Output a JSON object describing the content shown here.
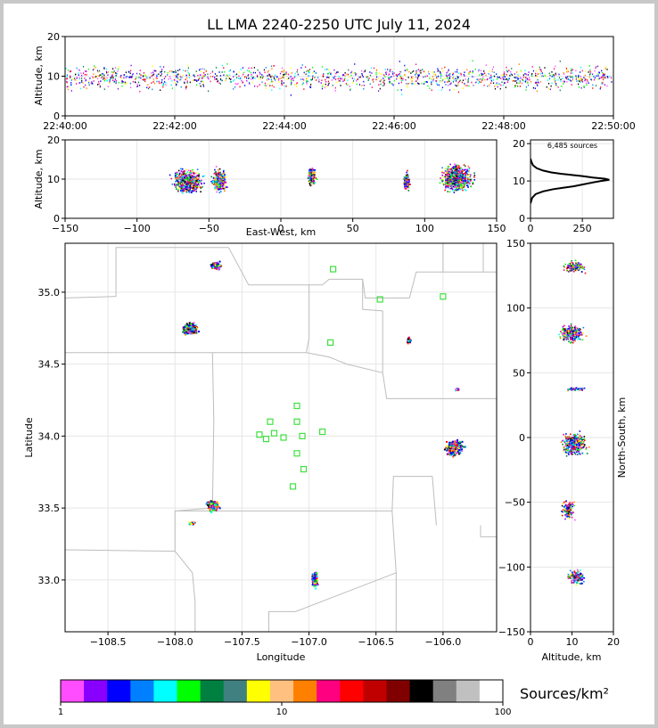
{
  "chart_data": [
    {
      "type": "scatter",
      "panel": "time-altitude",
      "title": "LL LMA 2240-2250 UTC July 11, 2024",
      "xlabel": "",
      "ylabel": "Altitude, km",
      "x_ticks": [
        "22:40:00",
        "22:42:00",
        "22:44:00",
        "22:46:00",
        "22:48:00",
        "22:50:00"
      ],
      "y_ticks": [
        0,
        10,
        20
      ],
      "xlim_minutes": [
        0,
        10
      ],
      "ylim": [
        0,
        20
      ],
      "grid": true
    },
    {
      "type": "scatter",
      "panel": "east-west-altitude",
      "xlabel": "East-West, km",
      "ylabel": "Altitude, km",
      "x_ticks": [
        -150,
        -100,
        -50,
        0,
        50,
        100,
        150
      ],
      "y_ticks": [
        0,
        10,
        20
      ],
      "xlim": [
        -150,
        150
      ],
      "ylim": [
        0,
        20
      ],
      "clusters": [
        {
          "x": -65,
          "alt": 9.5,
          "wx": 12,
          "wz": 3.5,
          "n": 650
        },
        {
          "x": -43,
          "alt": 9.8,
          "wx": 6,
          "wz": 3.5,
          "n": 350
        },
        {
          "x": 21,
          "alt": 11,
          "wx": 3.5,
          "wz": 2.5,
          "n": 180
        },
        {
          "x": 87,
          "alt": 9.5,
          "wx": 2.5,
          "wz": 3,
          "n": 130
        },
        {
          "x": 122,
          "alt": 10.5,
          "wx": 13,
          "wz": 4,
          "n": 750
        }
      ],
      "grid": true
    },
    {
      "type": "line",
      "panel": "altitude-histogram",
      "annotation": "6,485 sources",
      "x_ticks": [
        0,
        250
      ],
      "y_ticks": [
        0,
        10,
        20
      ],
      "xlim": [
        0,
        400
      ],
      "ylim": [
        0,
        21
      ],
      "points": [
        [
          0,
          4
        ],
        [
          8,
          5.5
        ],
        [
          25,
          6.5
        ],
        [
          60,
          7.2
        ],
        [
          110,
          7.8
        ],
        [
          160,
          8.2
        ],
        [
          210,
          8.6
        ],
        [
          255,
          9.1
        ],
        [
          300,
          9.6
        ],
        [
          340,
          10
        ],
        [
          380,
          10.3
        ],
        [
          360,
          10.6
        ],
        [
          300,
          10.9
        ],
        [
          250,
          11.3
        ],
        [
          200,
          11.6
        ],
        [
          150,
          11.9
        ],
        [
          100,
          12.3
        ],
        [
          60,
          12.8
        ],
        [
          30,
          13.4
        ],
        [
          12,
          14.2
        ],
        [
          4,
          15.2
        ],
        [
          0,
          16
        ]
      ],
      "grid": true
    },
    {
      "type": "scatter",
      "panel": "plan-view",
      "xlabel": "Longitude",
      "ylabel": "Latitude",
      "x_ticks": [
        -108.5,
        -108.0,
        -107.5,
        -107.0,
        -106.5,
        -106.0
      ],
      "y_ticks": [
        33.0,
        33.5,
        34.0,
        34.5,
        35.0
      ],
      "xlim": [
        -108.82,
        -105.6
      ],
      "ylim": [
        32.64,
        35.34
      ],
      "stations": [
        [
          -106.82,
          35.16
        ],
        [
          -106.47,
          34.95
        ],
        [
          -106.0,
          34.97
        ],
        [
          -106.84,
          34.65
        ],
        [
          -107.09,
          34.21
        ],
        [
          -107.29,
          34.1
        ],
        [
          -107.09,
          34.1
        ],
        [
          -107.26,
          34.02
        ],
        [
          -107.37,
          34.01
        ],
        [
          -107.32,
          33.98
        ],
        [
          -107.19,
          33.99
        ],
        [
          -107.05,
          34.0
        ],
        [
          -106.9,
          34.03
        ],
        [
          -107.09,
          33.88
        ],
        [
          -107.04,
          33.77
        ],
        [
          -107.12,
          33.65
        ]
      ],
      "clusters": [
        {
          "lon": -107.89,
          "lat": 34.75,
          "wx": 0.07,
          "wy": 0.045,
          "n": 320
        },
        {
          "lon": -107.7,
          "lat": 35.19,
          "wx": 0.05,
          "wy": 0.03,
          "n": 150
        },
        {
          "lon": -106.26,
          "lat": 34.67,
          "wx": 0.015,
          "wy": 0.025,
          "n": 60
        },
        {
          "lon": -105.9,
          "lat": 34.33,
          "wx": 0.02,
          "wy": 0.01,
          "n": 25
        },
        {
          "lon": -105.92,
          "lat": 33.92,
          "wx": 0.08,
          "wy": 0.06,
          "n": 380
        },
        {
          "lon": -107.72,
          "lat": 33.52,
          "wx": 0.06,
          "wy": 0.05,
          "n": 130
        },
        {
          "lon": -107.88,
          "lat": 33.4,
          "wx": 0.03,
          "wy": 0.01,
          "n": 30
        },
        {
          "lon": -106.96,
          "lat": 33.01,
          "wx": 0.025,
          "wy": 0.06,
          "n": 200
        }
      ],
      "grid": true
    },
    {
      "type": "scatter",
      "panel": "altitude-north-south",
      "xlabel": "Altitude, km",
      "ylabel": "North-South, km",
      "x_ticks": [
        0,
        10,
        20
      ],
      "y_ticks": [
        -150,
        -100,
        -50,
        0,
        50,
        100,
        150
      ],
      "xlim": [
        0,
        20
      ],
      "ylim": [
        -150,
        150
      ],
      "clusters": [
        {
          "alt": 10.5,
          "y": 132,
          "wz": 3,
          "wy": 5,
          "n": 150
        },
        {
          "alt": 9.8,
          "y": 81,
          "wz": 3.5,
          "wy": 8,
          "n": 340
        },
        {
          "alt": 10.5,
          "y": 38,
          "wz": 3,
          "wy": 1.5,
          "n": 60
        },
        {
          "alt": 10.5,
          "y": -5,
          "wz": 3.5,
          "wy": 10,
          "n": 420
        },
        {
          "alt": 9,
          "y": -55,
          "wz": 2,
          "wy": 9,
          "n": 130
        },
        {
          "alt": 11,
          "y": -108,
          "wz": 2.5,
          "wy": 7,
          "n": 180
        }
      ],
      "grid": true
    },
    {
      "type": "heatmap",
      "panel": "colorbar",
      "label": "Sources/km²",
      "tick_labels": [
        "1",
        "10",
        "100"
      ],
      "colors": [
        "#ff4dff",
        "#8800ff",
        "#0000ff",
        "#0080ff",
        "#00ffff",
        "#00ff00",
        "#008040",
        "#408080",
        "#ffff00",
        "#ffc080",
        "#ff8000",
        "#ff0080",
        "#ff0000",
        "#c00000",
        "#800000",
        "#000000",
        "#808080",
        "#c0c0c0",
        "#ffffff"
      ]
    }
  ]
}
